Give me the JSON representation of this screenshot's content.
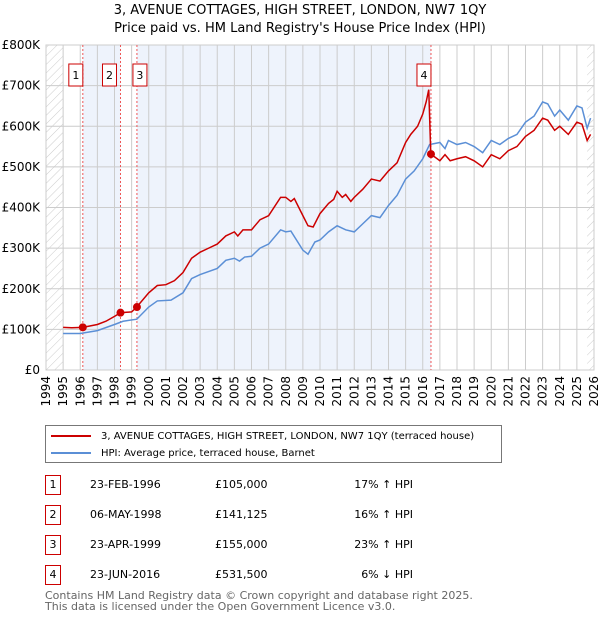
{
  "title": "3, AVENUE COTTAGES, HIGH STREET, LONDON, NW7 1QY",
  "subtitle": "Price paid vs. HM Land Registry's House Price Index (HPI)",
  "chart_data": {
    "type": "line",
    "title": "3, AVENUE COTTAGES, HIGH STREET, LONDON, NW7 1QY",
    "subtitle": "Price paid vs. HM Land Registry's House Price Index (HPI)",
    "xlim": [
      1994,
      2026
    ],
    "ylim": [
      0,
      800000
    ],
    "y_ticks": [
      {
        "v": 0,
        "label": "£0"
      },
      {
        "v": 100000,
        "label": "£100K"
      },
      {
        "v": 200000,
        "label": "£200K"
      },
      {
        "v": 300000,
        "label": "£300K"
      },
      {
        "v": 400000,
        "label": "£400K"
      },
      {
        "v": 500000,
        "label": "£500K"
      },
      {
        "v": 600000,
        "label": "£600K"
      },
      {
        "v": 700000,
        "label": "£700K"
      },
      {
        "v": 800000,
        "label": "£800K"
      }
    ],
    "x_ticks": [
      "1994",
      "1995",
      "1996",
      "1997",
      "1998",
      "1999",
      "2000",
      "2001",
      "2002",
      "2003",
      "2004",
      "2005",
      "2006",
      "2007",
      "2008",
      "2009",
      "2010",
      "2011",
      "2012",
      "2013",
      "2014",
      "2015",
      "2016",
      "2017",
      "2018",
      "2019",
      "2020",
      "2021",
      "2022",
      "2023",
      "2024",
      "2025",
      "2026"
    ],
    "grid": true,
    "legend_placement": "below",
    "series": [
      {
        "name": "3, AVENUE COTTAGES, HIGH STREET, LONDON, NW7 1QY (terraced house)",
        "color": "#cc0000",
        "x": [
          1995,
          1995.5,
          1996.15,
          1997,
          1997.5,
          1998,
          1998.35,
          1999,
          1999.3,
          2000,
          2000.5,
          2001,
          2001.5,
          2002,
          2002.5,
          2003,
          2003.5,
          2004,
          2004.5,
          2005,
          2005.2,
          2005.5,
          2006,
          2006.5,
          2007,
          2007.7,
          2008,
          2008.3,
          2008.5,
          2009,
          2009.3,
          2009.6,
          2010,
          2010.5,
          2010.8,
          2011,
          2011.3,
          2011.5,
          2011.8,
          2012,
          2012.5,
          2013,
          2013.5,
          2014,
          2014.5,
          2015,
          2015.3,
          2015.7,
          2016,
          2016.2,
          2016.35,
          2016.47,
          2017,
          2017.3,
          2017.6,
          2018,
          2018.5,
          2019,
          2019.5,
          2020,
          2020.5,
          2021,
          2021.5,
          2022,
          2022.5,
          2023,
          2023.3,
          2023.7,
          2024,
          2024.5,
          2025,
          2025.3,
          2025.6,
          2025.8
        ],
        "values": [
          105000,
          104000,
          105000,
          112000,
          120000,
          132000,
          141000,
          143000,
          155000,
          190000,
          208000,
          210000,
          220000,
          240000,
          275000,
          290000,
          300000,
          310000,
          330000,
          340000,
          330000,
          345000,
          345000,
          370000,
          380000,
          425000,
          425000,
          415000,
          422000,
          380000,
          355000,
          352000,
          385000,
          410000,
          420000,
          440000,
          425000,
          432000,
          415000,
          425000,
          445000,
          470000,
          465000,
          490000,
          510000,
          560000,
          580000,
          600000,
          630000,
          660000,
          690000,
          531500,
          515000,
          530000,
          515000,
          520000,
          525000,
          515000,
          500000,
          530000,
          520000,
          540000,
          550000,
          575000,
          590000,
          620000,
          615000,
          590000,
          600000,
          580000,
          610000,
          605000,
          565000,
          580000
        ]
      },
      {
        "name": "HPI: Average price, terraced house, Barnet",
        "color": "#5b8fd6",
        "x": [
          1995,
          1996,
          1997,
          1998,
          1998.5,
          1999.3,
          2000,
          2000.5,
          2001.3,
          2002,
          2002.5,
          2003,
          2004,
          2004.5,
          2005,
          2005.3,
          2005.6,
          2006,
          2006.5,
          2007,
          2007.7,
          2008,
          2008.3,
          2009,
          2009.3,
          2009.7,
          2010,
          2010.5,
          2011,
          2011.5,
          2012,
          2012.5,
          2013,
          2013.5,
          2014,
          2014.5,
          2015,
          2015.5,
          2016,
          2016.4,
          2017,
          2017.3,
          2017.5,
          2018,
          2018.5,
          2019,
          2019.5,
          2020,
          2020.5,
          2021,
          2021.5,
          2022,
          2022.5,
          2023,
          2023.3,
          2023.7,
          2024,
          2024.5,
          2025,
          2025.3,
          2025.6,
          2025.8
        ],
        "values": [
          90000,
          90000,
          97000,
          112000,
          120000,
          125000,
          155000,
          170000,
          172000,
          190000,
          225000,
          235000,
          250000,
          270000,
          275000,
          268000,
          278000,
          280000,
          300000,
          310000,
          345000,
          340000,
          342000,
          295000,
          285000,
          315000,
          320000,
          340000,
          355000,
          345000,
          340000,
          360000,
          380000,
          375000,
          405000,
          430000,
          470000,
          490000,
          520000,
          555000,
          560000,
          545000,
          565000,
          555000,
          560000,
          550000,
          535000,
          565000,
          555000,
          570000,
          580000,
          610000,
          625000,
          660000,
          655000,
          625000,
          640000,
          615000,
          650000,
          645000,
          595000,
          620000
        ]
      }
    ],
    "sales": [
      {
        "num": "1",
        "x": 1996.15,
        "value": 105000,
        "date": "23-FEB-1996",
        "price": "£105,000",
        "hpi": "17% ↑ HPI"
      },
      {
        "num": "2",
        "x": 1998.35,
        "value": 141125,
        "date": "06-MAY-1998",
        "price": "£141,125",
        "hpi": "16% ↑ HPI"
      },
      {
        "num": "3",
        "x": 1999.31,
        "value": 155000,
        "date": "23-APR-1999",
        "price": "£155,000",
        "hpi": "23% ↑ HPI"
      },
      {
        "num": "4",
        "x": 2016.48,
        "value": 531500,
        "date": "23-JUN-2016",
        "price": "£531,500",
        "hpi": "6% ↓ HPI"
      }
    ],
    "shaded_periods": [
      [
        1996.15,
        1998.35
      ],
      [
        1999.31,
        2016.48
      ]
    ],
    "hatched_periods": [
      [
        1994,
        1995
      ],
      [
        2025.6,
        2026
      ]
    ]
  },
  "legend": {
    "red": "3, AVENUE COTTAGES, HIGH STREET, LONDON, NW7 1QY (terraced house)",
    "blue": "HPI: Average price, terraced house, Barnet"
  },
  "footer": {
    "line1": "Contains HM Land Registry data © Crown copyright and database right 2025.",
    "line2": "This data is licensed under the Open Government Licence v3.0."
  }
}
